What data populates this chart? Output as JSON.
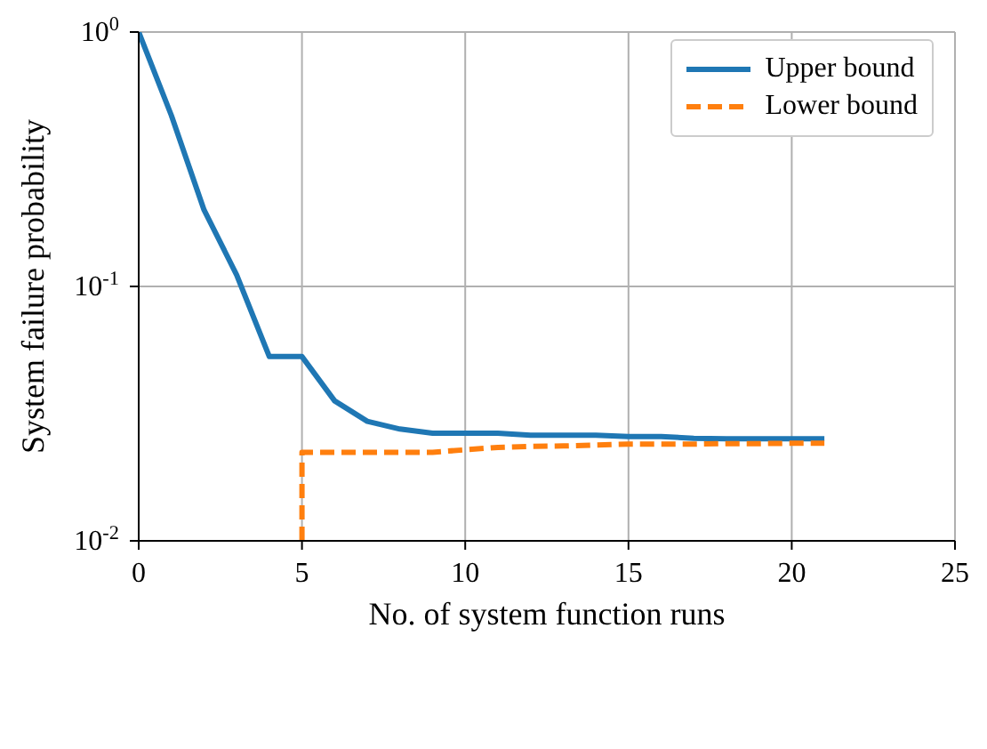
{
  "chart_data": {
    "type": "line",
    "xlabel": "No. of system function runs",
    "ylabel": "System failure probability",
    "xlim": [
      0,
      25
    ],
    "xticks": [
      0,
      5,
      10,
      15,
      20,
      25
    ],
    "ylim": [
      0.01,
      1
    ],
    "yticks": [
      {
        "value": 0.01,
        "label": "10$^{-2}$"
      },
      {
        "value": 0.1,
        "label": "10$^{-1}$"
      },
      {
        "value": 1,
        "label": "10$^{0}$"
      }
    ],
    "log": "y",
    "grid": true,
    "legend": "top right",
    "marker": "none",
    "series": [
      {
        "name": "Upper bound",
        "color": "#1f77b4",
        "line_style": "solid",
        "x": [
          0,
          1,
          2,
          3,
          4,
          5,
          6,
          7,
          8,
          9,
          10,
          11,
          12,
          13,
          14,
          15,
          16,
          17,
          18,
          19,
          20,
          21
        ],
        "values": [
          1,
          0.47,
          0.2,
          0.111,
          0.053,
          0.053,
          0.0355,
          0.0295,
          0.0275,
          0.0265,
          0.0265,
          0.0265,
          0.026,
          0.026,
          0.026,
          0.0257,
          0.0257,
          0.0253,
          0.0252,
          0.0252,
          0.0252,
          0.0252
        ]
      },
      {
        "name": "Lower bound",
        "color": "#ff7f0e",
        "line_style": "dashed",
        "x": [
          5,
          5,
          6,
          7,
          8,
          9,
          10,
          11,
          12,
          13,
          14,
          15,
          16,
          17,
          18,
          19,
          20,
          21
        ],
        "values": [
          0.01,
          0.0223,
          0.0223,
          0.0223,
          0.0223,
          0.0223,
          0.0228,
          0.0233,
          0.0235,
          0.0236,
          0.0238,
          0.024,
          0.024,
          0.024,
          0.0241,
          0.0241,
          0.0242,
          0.0242
        ]
      }
    ]
  }
}
